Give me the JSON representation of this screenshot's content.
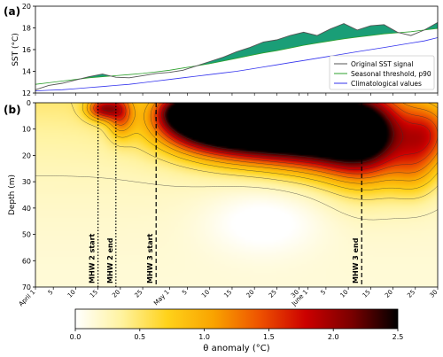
{
  "chart_data": [
    {
      "type": "line",
      "panel_label": "(a)",
      "ylabel": "SST (°C)",
      "ylim": [
        12,
        20
      ],
      "yticks": [
        12,
        14,
        16,
        18,
        20
      ],
      "x_unit": "day index from April 1",
      "xlim": [
        1,
        91
      ],
      "series": [
        {
          "name": "Original SST signal",
          "color": "#555555",
          "x": [
            1,
            4,
            7,
            10,
            13,
            16,
            19,
            22,
            25,
            28,
            31,
            34,
            37,
            40,
            43,
            46,
            49,
            52,
            55,
            58,
            61,
            64,
            67,
            70,
            73,
            76,
            79,
            82,
            85,
            88,
            91
          ],
          "values": [
            12.3,
            12.7,
            12.9,
            13.2,
            13.5,
            13.75,
            13.45,
            13.4,
            13.6,
            13.8,
            13.9,
            14.1,
            14.5,
            14.9,
            15.3,
            15.8,
            16.2,
            16.7,
            16.9,
            17.3,
            17.6,
            17.3,
            17.9,
            18.4,
            17.8,
            18.2,
            18.3,
            17.6,
            17.3,
            17.8,
            18.5
          ]
        },
        {
          "name": "Seasonal threshold, p90",
          "color": "#2ca02c",
          "x": [
            1,
            4,
            7,
            10,
            13,
            16,
            19,
            22,
            25,
            28,
            31,
            34,
            37,
            40,
            43,
            46,
            49,
            52,
            55,
            58,
            61,
            64,
            67,
            70,
            73,
            76,
            79,
            82,
            85,
            88,
            91
          ],
          "values": [
            12.8,
            12.95,
            13.1,
            13.25,
            13.4,
            13.5,
            13.6,
            13.7,
            13.8,
            13.95,
            14.1,
            14.3,
            14.5,
            14.7,
            14.95,
            15.2,
            15.45,
            15.7,
            15.9,
            16.15,
            16.4,
            16.6,
            16.8,
            17.0,
            17.15,
            17.3,
            17.45,
            17.55,
            17.65,
            17.8,
            17.95
          ]
        },
        {
          "name": "Climatological values",
          "color": "#3333ee",
          "x": [
            1,
            4,
            7,
            10,
            13,
            16,
            19,
            22,
            25,
            28,
            31,
            34,
            37,
            40,
            43,
            46,
            49,
            52,
            55,
            58,
            61,
            64,
            67,
            70,
            73,
            76,
            79,
            82,
            85,
            88,
            91
          ],
          "values": [
            12.2,
            12.25,
            12.3,
            12.4,
            12.5,
            12.6,
            12.7,
            12.8,
            12.95,
            13.1,
            13.25,
            13.4,
            13.55,
            13.7,
            13.85,
            14.0,
            14.2,
            14.4,
            14.6,
            14.8,
            15.0,
            15.2,
            15.4,
            15.6,
            15.8,
            16.0,
            16.2,
            16.4,
            16.6,
            16.8,
            17.1
          ]
        }
      ],
      "fill_colors": {
        "above_threshold_mhw": "#1a9e77",
        "above_threshold_minor": "#e8826f"
      },
      "legend": {
        "placement": "lower-right"
      }
    },
    {
      "type": "heatmap",
      "panel_label": "(b)",
      "ylabel": "Depth (m)",
      "ylim": [
        70,
        0
      ],
      "yticks": [
        0,
        10,
        20,
        30,
        40,
        50,
        60,
        70
      ],
      "xlim": [
        1,
        91
      ],
      "xticks": [
        {
          "x": 1,
          "label": "April 1"
        },
        {
          "x": 5,
          "label": "5"
        },
        {
          "x": 10,
          "label": "10"
        },
        {
          "x": 15,
          "label": "15"
        },
        {
          "x": 20,
          "label": "20"
        },
        {
          "x": 25,
          "label": "25"
        },
        {
          "x": 31,
          "label": "May 1"
        },
        {
          "x": 35,
          "label": "5"
        },
        {
          "x": 40,
          "label": "10"
        },
        {
          "x": 45,
          "label": "15"
        },
        {
          "x": 50,
          "label": "20"
        },
        {
          "x": 55,
          "label": "25"
        },
        {
          "x": 60,
          "label": "30"
        },
        {
          "x": 62,
          "label": "June 1"
        },
        {
          "x": 66,
          "label": "5"
        },
        {
          "x": 71,
          "label": "10"
        },
        {
          "x": 76,
          "label": "15"
        },
        {
          "x": 81,
          "label": "20"
        },
        {
          "x": 86,
          "label": "25"
        },
        {
          "x": 91,
          "label": "30"
        }
      ],
      "hot_spots": [
        {
          "x": 56,
          "depth": 8,
          "amp": 2.6,
          "sx": 14,
          "sz": 9
        },
        {
          "x": 47,
          "depth": 7,
          "amp": 1.9,
          "sx": 10,
          "sz": 8
        },
        {
          "x": 68,
          "depth": 12,
          "amp": 1.5,
          "sx": 9,
          "sz": 10
        },
        {
          "x": 75,
          "depth": 15,
          "amp": 1.2,
          "sx": 6,
          "sz": 12
        },
        {
          "x": 38,
          "depth": 6,
          "amp": 1.3,
          "sx": 6,
          "sz": 6
        },
        {
          "x": 16,
          "depth": 2,
          "amp": 1.4,
          "sx": 2.5,
          "sz": 3
        },
        {
          "x": 20,
          "depth": 4,
          "amp": 0.9,
          "sx": 2,
          "sz": 6
        },
        {
          "x": 33,
          "depth": 3,
          "amp": 0.9,
          "sx": 3,
          "sz": 4
        },
        {
          "x": 89,
          "depth": 12,
          "amp": 1.0,
          "sx": 4,
          "sz": 8
        },
        {
          "x": 86,
          "depth": 25,
          "amp": 0.6,
          "sx": 4,
          "sz": 8
        }
      ],
      "events": [
        {
          "label": "MHW 2 start",
          "x": 15.0,
          "style": "dotted"
        },
        {
          "label": "MHW 2 end",
          "x": 19.0,
          "style": "dotted"
        },
        {
          "label": "MHW 3 start",
          "x": 28.0,
          "style": "dashed"
        },
        {
          "label": "MHW 3 end",
          "x": 74.0,
          "style": "dashed"
        }
      ],
      "colorbar": {
        "label": "θ anomaly (°C)",
        "min": 0.0,
        "max": 2.5,
        "ticks": [
          "0.0",
          "0.5",
          "1.0",
          "1.5",
          "2.0",
          "2.5"
        ],
        "colors": [
          "#ffffff",
          "#fff3a0",
          "#ffd21a",
          "#f9a300",
          "#ee5200",
          "#cc0000",
          "#7a0000",
          "#000000"
        ]
      }
    }
  ]
}
